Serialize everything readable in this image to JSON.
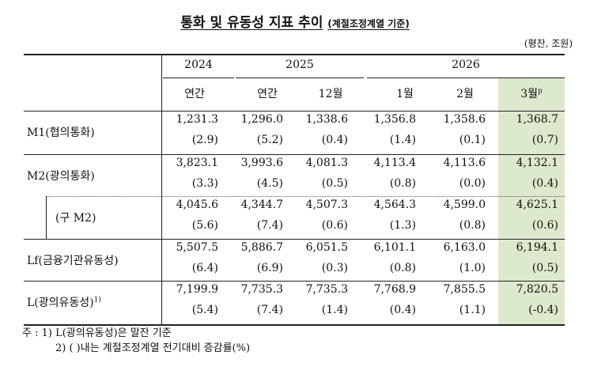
{
  "title": "통화 및 유동성 지표 추이",
  "subtitle": "(계절조정계열 기준)",
  "unit": "(평잔, 조원)",
  "years": [
    "2024",
    "2025",
    "2026"
  ],
  "columns": [
    "연간",
    "연간",
    "12월",
    "1월",
    "2월",
    "3월"
  ],
  "last_col_sup": "p",
  "rows": [
    {
      "label": "M1(협의통화)",
      "values": [
        "1,231.3",
        "1,296.0",
        "1,338.6",
        "1,356.8",
        "1,358.6",
        "1,368.7"
      ],
      "changes": [
        "(2.9)",
        "(5.2)",
        "(0.4)",
        "(1.4)",
        "(0.1)",
        "(0.7)"
      ]
    },
    {
      "label": "M2(광의통화)",
      "values": [
        "3,823.1",
        "3,993.6",
        "4,081.3",
        "4,113.4",
        "4,113.6",
        "4,132.1"
      ],
      "changes": [
        "(3.3)",
        "(4.5)",
        "(0.5)",
        "(0.8)",
        "(0.0)",
        "(0.4)"
      ]
    },
    {
      "label": "(구 M2)",
      "values": [
        "4,045.6",
        "4,344.7",
        "4,507.3",
        "4,564.3",
        "4,599.0",
        "4,625.1"
      ],
      "changes": [
        "(5.6)",
        "(7.4)",
        "(0.6)",
        "(1.3)",
        "(0.8)",
        "(0.6)"
      ]
    },
    {
      "label": "Lf(금융기관유동성)",
      "values": [
        "5,507.5",
        "5,886.7",
        "6,051.5",
        "6,101.1",
        "6,163.0",
        "6,194.1"
      ],
      "changes": [
        "(6.4)",
        "(6.9)",
        "(0.3)",
        "(0.8)",
        "(1.0)",
        "(0.5)"
      ]
    },
    {
      "label": "L(광의유동성)",
      "label_sup": "1)",
      "values": [
        "7,199.9",
        "7,735.3",
        "7,735.3",
        "7,768.9",
        "7,855.5",
        "7,820.5"
      ],
      "changes": [
        "(5.4)",
        "(7.4)",
        "(1.4)",
        "(0.4)",
        "(1.1)",
        "(-0.4)"
      ]
    }
  ],
  "notes": [
    "주 : 1) L(광의유동성)은 말잔 기준",
    "2) (   )내는 계절조정계열 전기대비 증감률(%)"
  ]
}
